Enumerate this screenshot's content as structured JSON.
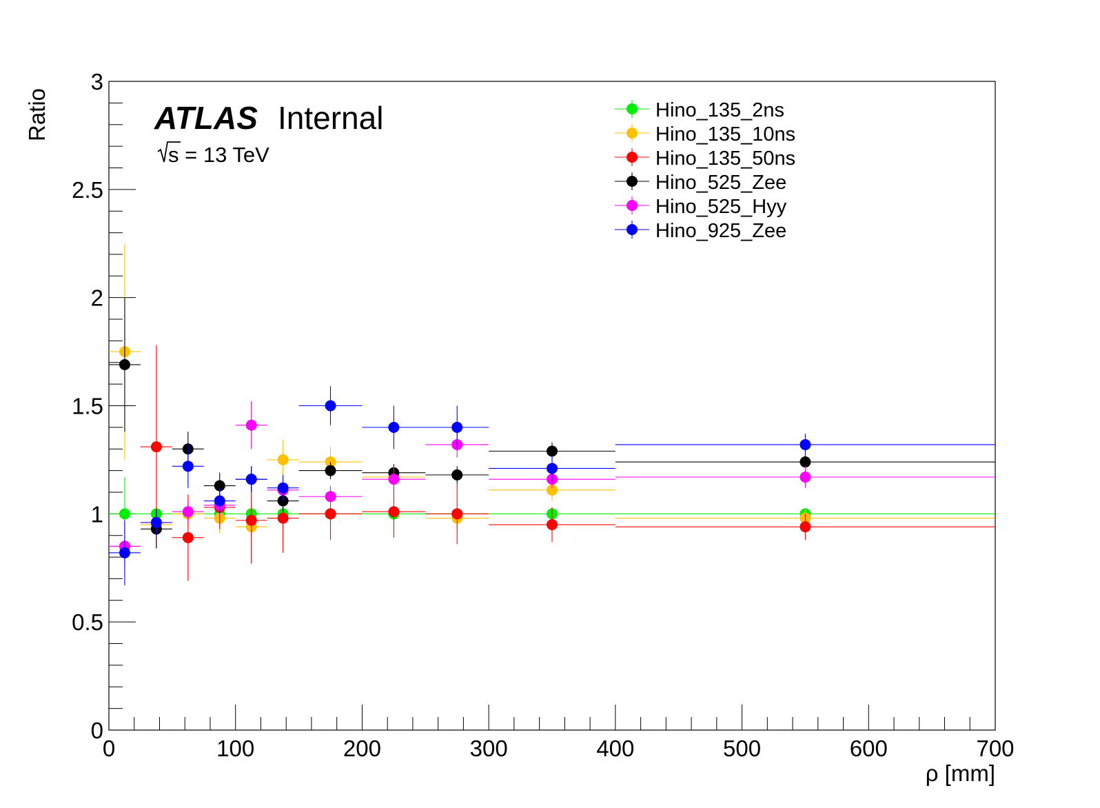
{
  "chart_data": {
    "type": "scatter",
    "ylabel": "Ratio",
    "xlabel": "ρ [mm]",
    "xlim": [
      0,
      700
    ],
    "ylim": [
      0,
      3
    ],
    "x_ticks": [
      "0",
      "100",
      "200",
      "300",
      "400",
      "500",
      "600",
      "700"
    ],
    "y_ticks": [
      "0",
      "0.5",
      "1",
      "1.5",
      "2",
      "2.5",
      "3"
    ],
    "grid": false,
    "legend_position": "top-right",
    "atlas_label": "ATLAS",
    "atlas_status": "Internal",
    "energy_label": "s = 13 TeV",
    "bins": [
      [
        0,
        25
      ],
      [
        25,
        50
      ],
      [
        50,
        75
      ],
      [
        75,
        100
      ],
      [
        100,
        125
      ],
      [
        125,
        150
      ],
      [
        150,
        200
      ],
      [
        200,
        250
      ],
      [
        250,
        300
      ],
      [
        300,
        400
      ],
      [
        400,
        700
      ]
    ],
    "series": [
      {
        "name": "Hino_135_2ns",
        "color": "#00ee00",
        "values": [
          1.0,
          1.0,
          1.0,
          1.0,
          1.0,
          1.0,
          1.0,
          1.0,
          1.0,
          1.0,
          1.0
        ],
        "errors": [
          0.17,
          0.03,
          0.02,
          0.02,
          0.02,
          0.02,
          0.02,
          0.02,
          0.02,
          0.02,
          0.02
        ]
      },
      {
        "name": "Hino_135_10ns",
        "color": "#ffc000",
        "values": [
          1.75,
          0.95,
          1.0,
          0.98,
          0.94,
          1.25,
          1.24,
          1.17,
          0.98,
          1.11,
          0.98
        ],
        "errors": [
          0.5,
          0.08,
          0.06,
          0.07,
          0.06,
          0.09,
          0.07,
          0.05,
          0.05,
          0.05,
          0.04
        ]
      },
      {
        "name": "Hino_135_50ns",
        "color": "#ff0000",
        "values": [
          0.85,
          1.31,
          0.89,
          1.03,
          0.97,
          0.98,
          1.0,
          1.01,
          1.0,
          0.95,
          0.94
        ],
        "errors": [
          0.12,
          0.47,
          0.2,
          0.1,
          0.2,
          0.16,
          0.12,
          0.12,
          0.14,
          0.08,
          0.06
        ]
      },
      {
        "name": "Hino_525_Zee",
        "color": "#000000",
        "values": [
          1.69,
          0.93,
          1.3,
          1.13,
          1.16,
          1.06,
          1.2,
          1.19,
          1.18,
          1.29,
          1.24
        ],
        "errors": [
          0.31,
          0.09,
          0.08,
          0.06,
          0.06,
          0.05,
          0.04,
          0.04,
          0.04,
          0.04,
          0.03
        ]
      },
      {
        "name": "Hino_525_Hyy",
        "color": "#ff00ff",
        "values": [
          0.85,
          0.96,
          1.01,
          1.04,
          1.41,
          1.11,
          1.08,
          1.16,
          1.32,
          1.16,
          1.17
        ],
        "errors": [
          0.1,
          0.05,
          0.05,
          0.05,
          0.11,
          0.05,
          0.05,
          0.06,
          0.06,
          0.04,
          0.05
        ]
      },
      {
        "name": "Hino_925_Zee",
        "color": "#0000ff",
        "values": [
          0.82,
          0.96,
          1.22,
          1.06,
          1.16,
          1.12,
          1.5,
          1.4,
          1.4,
          1.21,
          1.32
        ],
        "errors": [
          0.15,
          0.06,
          0.1,
          0.06,
          0.06,
          0.06,
          0.09,
          0.1,
          0.1,
          0.06,
          0.05
        ]
      }
    ]
  }
}
